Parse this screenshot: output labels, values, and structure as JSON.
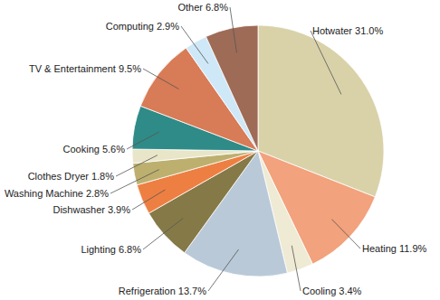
{
  "chart_data": {
    "type": "pie",
    "categories": [
      "Hotwater",
      "Heating",
      "Cooling",
      "Refrigeration",
      "Lighting",
      "Dishwasher",
      "Washing Machine",
      "Clothes Dryer",
      "Cooking",
      "TV & Entertainment",
      "Computing",
      "Other"
    ],
    "values": [
      31.0,
      11.9,
      3.4,
      13.7,
      6.8,
      3.9,
      2.8,
      1.8,
      5.6,
      9.5,
      2.9,
      6.8
    ],
    "value_labels": [
      "31.0%",
      "11.9%",
      "3.4%",
      "13.7%",
      "6.8%",
      "3.9%",
      "2.8%",
      "1.8%",
      "5.6%",
      "9.5%",
      "2.9%",
      "6.8%"
    ],
    "colors": [
      "#d9d2a9",
      "#f2a27c",
      "#eeead4",
      "#b9c9d8",
      "#857a47",
      "#ee7f42",
      "#bdb06f",
      "#e9e5c8",
      "#2f8b87",
      "#d87b57",
      "#cfe8f7",
      "#9e6b57"
    ],
    "data_labels": true
  }
}
